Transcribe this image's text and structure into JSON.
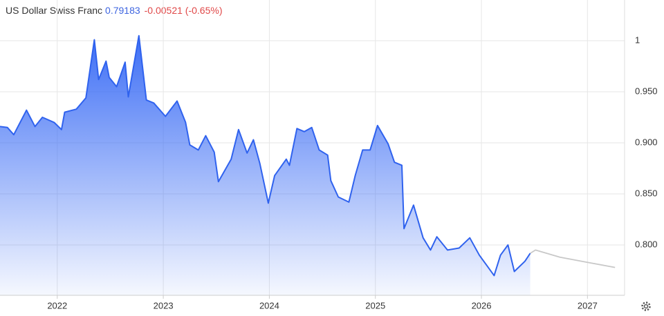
{
  "chart_data": {
    "type": "line",
    "title": "US Dollar Swiss Franc",
    "price": "0.79183",
    "change": "-0.00521 (-0.65%)",
    "xlim": [
      2021.46,
      2027.35
    ],
    "xticks": [
      2022,
      2023,
      2024,
      2025,
      2026,
      2027
    ],
    "ylim": [
      0.7507,
      1.0399
    ],
    "yticks": [
      {
        "value": 0.8,
        "label": "0.800"
      },
      {
        "value": 0.85,
        "label": "0.850"
      },
      {
        "value": 0.9,
        "label": "0.900"
      },
      {
        "value": 0.95,
        "label": "0.950"
      },
      1
    ],
    "grid": true,
    "series": [
      {
        "color": "#2f62ee",
        "x": [
          2021.46,
          2021.53,
          2021.59,
          2021.71,
          2021.79,
          2021.86,
          2021.97,
          2022.04,
          2022.07,
          2022.18,
          2022.27,
          2022.35,
          2022.39,
          2022.46,
          2022.49,
          2022.56,
          2022.64,
          2022.67,
          2022.77,
          2022.84,
          2022.91,
          2023.02,
          2023.13,
          2023.21,
          2023.25,
          2023.33,
          2023.4,
          2023.48,
          2023.52,
          2023.64,
          2023.71,
          2023.79,
          2023.85,
          2023.91,
          2023.99,
          2024.05,
          2024.16,
          2024.19,
          2024.26,
          2024.33,
          2024.4,
          2024.47,
          2024.55,
          2024.58,
          2024.65,
          2024.75,
          2024.81,
          2024.88,
          2024.95,
          2025.02,
          2025.12,
          2025.18,
          2025.25,
          2025.27,
          2025.36,
          2025.45,
          2025.52,
          2025.58,
          2025.68,
          2025.79,
          2025.89,
          2025.98,
          2026.05,
          2026.12,
          2026.18,
          2026.25,
          2026.31,
          2026.41,
          2026.46
        ],
        "values": [
          0.916,
          0.915,
          0.908,
          0.932,
          0.916,
          0.925,
          0.92,
          0.913,
          0.93,
          0.933,
          0.944,
          1.001,
          0.962,
          0.98,
          0.964,
          0.955,
          0.979,
          0.945,
          1.005,
          0.942,
          0.939,
          0.926,
          0.941,
          0.92,
          0.898,
          0.893,
          0.907,
          0.891,
          0.862,
          0.884,
          0.913,
          0.89,
          0.903,
          0.88,
          0.841,
          0.868,
          0.884,
          0.878,
          0.914,
          0.911,
          0.915,
          0.893,
          0.888,
          0.863,
          0.847,
          0.842,
          0.868,
          0.893,
          0.893,
          0.917,
          0.899,
          0.881,
          0.878,
          0.816,
          0.839,
          0.807,
          0.795,
          0.808,
          0.795,
          0.797,
          0.807,
          0.79,
          0.78,
          0.77,
          0.79,
          0.8,
          0.774,
          0.784,
          0.79183
        ]
      },
      {
        "color": "#c8c8c8",
        "x": [
          2026.46,
          2026.51,
          2026.74,
          2027.0,
          2027.26
        ],
        "values": [
          0.79183,
          0.795,
          0.788,
          0.783,
          0.778
        ]
      }
    ]
  }
}
